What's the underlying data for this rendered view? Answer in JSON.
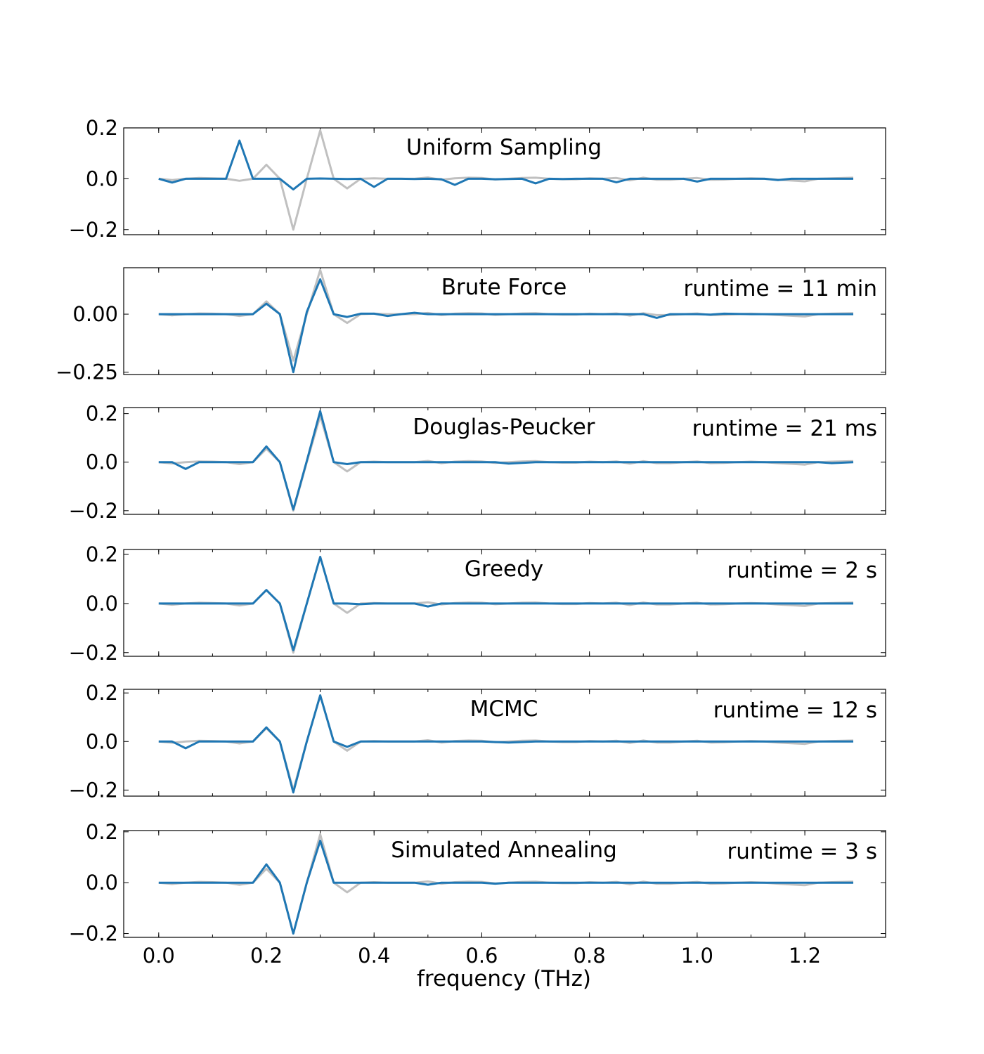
{
  "colors": {
    "reference": "#c0c0c0",
    "approximation": "#1f77b4"
  },
  "chart_data": {
    "type": "line",
    "xlabel": "frequency (THz)",
    "xlim": [
      -0.065,
      1.35
    ],
    "xticks": [
      0.0,
      0.2,
      0.4,
      0.6,
      0.8,
      1.0,
      1.2
    ],
    "xtick_labels": [
      "0.0",
      "0.2",
      "0.4",
      "0.6",
      "0.8",
      "1.0",
      "1.2"
    ],
    "reference": {
      "x": [
        0,
        0.025,
        0.05,
        0.075,
        0.1,
        0.125,
        0.15,
        0.175,
        0.2,
        0.225,
        0.25,
        0.275,
        0.3,
        0.325,
        0.35,
        0.375,
        0.4,
        0.425,
        0.45,
        0.475,
        0.5,
        0.525,
        0.55,
        0.575,
        0.6,
        0.625,
        0.65,
        0.675,
        0.7,
        0.725,
        0.75,
        0.775,
        0.8,
        0.825,
        0.85,
        0.875,
        0.9,
        0.925,
        0.95,
        0.975,
        1.0,
        1.025,
        1.05,
        1.075,
        1.1,
        1.125,
        1.15,
        1.175,
        1.2,
        1.225,
        1.25,
        1.29
      ],
      "y": [
        0,
        -0.005,
        0,
        0.003,
        0.002,
        0,
        -0.008,
        0,
        0.055,
        0,
        -0.2,
        0,
        0.19,
        0,
        -0.038,
        0,
        0.002,
        0,
        0,
        0,
        0.005,
        -0.004,
        0.002,
        0.004,
        0.003,
        -0.003,
        0,
        0.003,
        0.004,
        0,
        -0.002,
        -0.002,
        0.002,
        0,
        0.003,
        -0.006,
        0.004,
        -0.004,
        -0.004,
        0,
        0.003,
        -0.004,
        -0.003,
        0,
        0.002,
        0,
        -0.004,
        -0.007,
        -0.01,
        0,
        0.002,
        0.004
      ]
    },
    "panels": [
      {
        "title": "Uniform Sampling",
        "runtime": "",
        "ylim": [
          -0.22,
          0.2
        ],
        "yticks": [
          -0.2,
          0.0,
          0.2
        ],
        "ytick_labels": [
          "−0.2",
          "0.0",
          "0.2"
        ],
        "x": [
          0,
          0.025,
          0.05,
          0.075,
          0.1,
          0.125,
          0.15,
          0.175,
          0.2,
          0.225,
          0.25,
          0.275,
          0.3,
          0.325,
          0.35,
          0.375,
          0.4,
          0.425,
          0.45,
          0.475,
          0.5,
          0.525,
          0.55,
          0.575,
          0.6,
          0.625,
          0.65,
          0.675,
          0.7,
          0.725,
          0.75,
          0.775,
          0.8,
          0.825,
          0.85,
          0.875,
          0.9,
          0.925,
          0.95,
          0.975,
          1.0,
          1.025,
          1.05,
          1.075,
          1.1,
          1.125,
          1.15,
          1.175,
          1.2,
          1.225,
          1.25,
          1.29
        ],
        "y": [
          0,
          -0.015,
          0,
          0,
          0,
          0,
          0.15,
          0,
          0,
          0,
          -0.042,
          0,
          0.001,
          0,
          -0.001,
          0,
          -0.032,
          0,
          0,
          -0.001,
          0,
          -0.002,
          -0.024,
          0,
          0,
          -0.002,
          -0.001,
          0,
          -0.018,
          0,
          -0.001,
          0,
          0,
          0,
          -0.014,
          0,
          0,
          0,
          0,
          0,
          -0.011,
          0,
          0,
          0,
          0,
          0,
          -0.005,
          0,
          0,
          0,
          0,
          0
        ]
      },
      {
        "title": "Brute Force",
        "runtime": "runtime = 11 min",
        "ylim": [
          -0.26,
          0.2
        ],
        "yticks": [
          -0.25,
          0.0
        ],
        "ytick_labels": [
          "−0.25",
          "0.00"
        ],
        "x": [
          0,
          0.05,
          0.1,
          0.15,
          0.175,
          0.2,
          0.225,
          0.25,
          0.275,
          0.3,
          0.325,
          0.35,
          0.375,
          0.4,
          0.425,
          0.45,
          0.475,
          0.5,
          0.55,
          0.6,
          0.65,
          0.7,
          0.75,
          0.8,
          0.85,
          0.9,
          0.925,
          0.95,
          1.0,
          1.025,
          1.05,
          1.1,
          1.15,
          1.2,
          1.25,
          1.29
        ],
        "y": [
          0,
          0,
          0,
          0,
          0,
          0.045,
          0,
          -0.25,
          0.01,
          0.15,
          0,
          -0.012,
          0.002,
          0.002,
          -0.008,
          0,
          0.006,
          0,
          0,
          0,
          0,
          0,
          0,
          0,
          0,
          0,
          -0.016,
          0,
          0,
          -0.002,
          0.002,
          0,
          0,
          0,
          0,
          0
        ]
      },
      {
        "title": "Douglas-Peucker",
        "runtime": "runtime = 21 ms",
        "ylim": [
          -0.215,
          0.225
        ],
        "yticks": [
          -0.2,
          0.0,
          0.2
        ],
        "ytick_labels": [
          "−0.2",
          "0.0",
          "0.2"
        ],
        "x": [
          0,
          0.025,
          0.05,
          0.075,
          0.1,
          0.15,
          0.175,
          0.2,
          0.225,
          0.25,
          0.275,
          0.3,
          0.325,
          0.35,
          0.375,
          0.4,
          0.5,
          0.6,
          0.625,
          0.65,
          0.7,
          0.8,
          0.9,
          1.0,
          1.1,
          1.2,
          1.225,
          1.25,
          1.29
        ],
        "y": [
          0,
          0,
          -0.028,
          0,
          0,
          0,
          0,
          0.065,
          0,
          -0.195,
          0.005,
          0.21,
          0,
          -0.008,
          0,
          0,
          0,
          0,
          0,
          -0.006,
          0,
          0,
          0,
          0,
          0,
          0,
          0,
          -0.004,
          0
        ]
      },
      {
        "title": "Greedy",
        "runtime": "runtime = 2 s",
        "ylim": [
          -0.215,
          0.22
        ],
        "yticks": [
          -0.2,
          0.0,
          0.2
        ],
        "ytick_labels": [
          "−0.2",
          "0.0",
          "0.2"
        ],
        "x": [
          0,
          0.05,
          0.1,
          0.15,
          0.175,
          0.2,
          0.225,
          0.25,
          0.275,
          0.3,
          0.325,
          0.35,
          0.375,
          0.4,
          0.45,
          0.475,
          0.5,
          0.525,
          0.6,
          0.7,
          0.8,
          0.9,
          1.0,
          1.1,
          1.2,
          1.29
        ],
        "y": [
          0,
          0,
          0,
          0,
          0,
          0.055,
          0,
          -0.19,
          0,
          0.19,
          0,
          0,
          -0.003,
          0,
          0,
          0,
          -0.012,
          0,
          0,
          0,
          0,
          0,
          0,
          0,
          0,
          0
        ]
      },
      {
        "title": "MCMC",
        "runtime": "runtime = 12 s",
        "ylim": [
          -0.225,
          0.215
        ],
        "yticks": [
          -0.2,
          0.0,
          0.2
        ],
        "ytick_labels": [
          "−0.2",
          "0.0",
          "0.2"
        ],
        "x": [
          0,
          0.025,
          0.05,
          0.075,
          0.1,
          0.15,
          0.175,
          0.2,
          0.225,
          0.25,
          0.275,
          0.3,
          0.325,
          0.35,
          0.375,
          0.4,
          0.5,
          0.6,
          0.65,
          0.7,
          0.8,
          0.9,
          1.0,
          1.1,
          1.2,
          1.29
        ],
        "y": [
          0,
          0,
          -0.028,
          0,
          0,
          0,
          0,
          0.058,
          0,
          -0.21,
          0,
          0.19,
          0,
          -0.022,
          0,
          0,
          0,
          0,
          -0.004,
          0,
          0,
          0,
          0,
          0,
          0,
          0
        ]
      },
      {
        "title": "Simulated Annealing",
        "runtime": "runtime = 3 s",
        "ylim": [
          -0.215,
          0.205
        ],
        "yticks": [
          -0.2,
          0.0,
          0.2
        ],
        "ytick_labels": [
          "−0.2",
          "0.0",
          "0.2"
        ],
        "x": [
          0,
          0.05,
          0.1,
          0.15,
          0.175,
          0.2,
          0.225,
          0.25,
          0.275,
          0.3,
          0.325,
          0.35,
          0.375,
          0.4,
          0.475,
          0.5,
          0.525,
          0.6,
          0.625,
          0.65,
          0.7,
          0.8,
          0.9,
          1.0,
          1.1,
          1.2,
          1.29
        ],
        "y": [
          0,
          0,
          0,
          0,
          0,
          0.072,
          0,
          -0.2,
          0,
          0.165,
          0,
          0,
          0,
          0,
          0,
          -0.008,
          0,
          0,
          -0.004,
          0,
          0,
          0,
          0,
          0,
          0,
          0,
          0
        ]
      }
    ]
  }
}
